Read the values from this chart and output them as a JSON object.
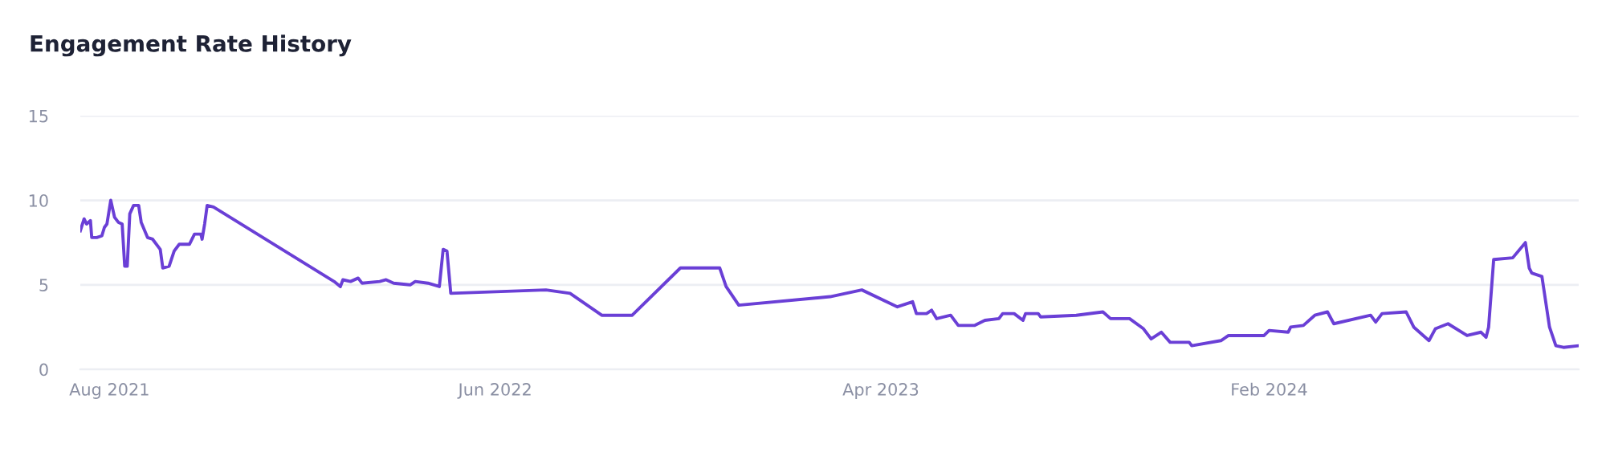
{
  "chart_data": {
    "type": "line",
    "title": "Engagement Rate History",
    "x": [
      "2021-07-09",
      "2021-07-12",
      "2021-07-14",
      "2021-07-17",
      "2021-07-18",
      "2021-07-22",
      "2021-07-26",
      "2021-07-28",
      "2021-07-30",
      "2021-08-02",
      "2021-08-05",
      "2021-08-08",
      "2021-08-11",
      "2021-08-13",
      "2021-08-15",
      "2021-08-17",
      "2021-08-20",
      "2021-08-24",
      "2021-08-26",
      "2021-08-31",
      "2021-09-04",
      "2021-09-10",
      "2021-09-12",
      "2021-09-17",
      "2021-09-21",
      "2021-09-25",
      "2021-10-03",
      "2021-10-07",
      "2021-10-12",
      "2021-10-13",
      "2021-10-15",
      "2021-10-17",
      "2021-10-22",
      "2022-01-25",
      "2022-01-30",
      "2022-02-01",
      "2022-02-07",
      "2022-02-13",
      "2022-02-16",
      "2022-03-02",
      "2022-03-07",
      "2022-03-13",
      "2022-03-26",
      "2022-03-30",
      "2022-04-09",
      "2022-04-18",
      "2022-04-21",
      "2022-04-24",
      "2022-04-27",
      "2022-07-11",
      "2022-07-30",
      "2022-08-24",
      "2022-09-17",
      "2022-10-25",
      "2022-11-25",
      "2022-11-30",
      "2022-12-10",
      "2023-02-20",
      "2023-03-17",
      "2023-04-14",
      "2023-04-26",
      "2023-04-29",
      "2023-05-07",
      "2023-05-11",
      "2023-05-15",
      "2023-05-26",
      "2023-06-01",
      "2023-06-14",
      "2023-06-22",
      "2023-07-03",
      "2023-07-06",
      "2023-07-15",
      "2023-07-22",
      "2023-07-24",
      "2023-08-03",
      "2023-08-05",
      "2023-09-02",
      "2023-09-23",
      "2023-09-29",
      "2023-10-14",
      "2023-10-25",
      "2023-10-31",
      "2023-11-08",
      "2023-11-15",
      "2023-11-30",
      "2023-12-02",
      "2023-12-25",
      "2023-12-31",
      "2024-01-28",
      "2024-02-01",
      "2024-02-16",
      "2024-02-18",
      "2024-02-28",
      "2024-03-08",
      "2024-03-18",
      "2024-03-23",
      "2024-04-21",
      "2024-04-25",
      "2024-04-30",
      "2024-05-19",
      "2024-05-25",
      "2024-06-06",
      "2024-06-11",
      "2024-06-21",
      "2024-07-06",
      "2024-07-17",
      "2024-07-21",
      "2024-07-23",
      "2024-07-27",
      "2024-08-11",
      "2024-08-21",
      "2024-08-24",
      "2024-08-26",
      "2024-09-03",
      "2024-09-09",
      "2024-09-14",
      "2024-09-20",
      "2024-10-02"
    ],
    "values": [
      8.2,
      8.9,
      8.6,
      8.8,
      7.8,
      7.8,
      7.9,
      8.4,
      8.6,
      10.0,
      9.0,
      8.7,
      8.6,
      6.1,
      6.1,
      9.2,
      9.7,
      9.7,
      8.7,
      7.8,
      7.7,
      7.1,
      6.0,
      6.1,
      7.0,
      7.4,
      7.4,
      8.0,
      8.0,
      7.7,
      8.6,
      9.7,
      9.6,
      5.2,
      4.9,
      5.3,
      5.2,
      5.4,
      5.1,
      5.2,
      5.3,
      5.1,
      5.0,
      5.2,
      5.1,
      4.9,
      7.1,
      7.0,
      4.5,
      4.7,
      4.5,
      3.2,
      3.2,
      6.0,
      6.0,
      4.9,
      3.8,
      4.3,
      4.7,
      3.7,
      4.0,
      3.3,
      3.3,
      3.5,
      3.0,
      3.2,
      2.6,
      2.6,
      2.9,
      3.0,
      3.3,
      3.3,
      2.9,
      3.3,
      3.3,
      3.1,
      3.2,
      3.4,
      3.0,
      3.0,
      2.4,
      1.8,
      2.2,
      1.6,
      1.6,
      1.4,
      1.7,
      2.0,
      2.0,
      2.3,
      2.2,
      2.5,
      2.6,
      3.2,
      3.4,
      2.7,
      3.2,
      2.8,
      3.3,
      3.4,
      2.5,
      1.7,
      2.4,
      2.7,
      2.0,
      2.2,
      1.9,
      2.5,
      6.5,
      6.6,
      7.5,
      6.0,
      5.7,
      5.5,
      2.5,
      1.4,
      1.3,
      1.4
    ],
    "color": "#6a3fd6",
    "xlim": [
      "2021-07-09",
      "2024-10-02"
    ],
    "xticks": [
      {
        "value": "2021-08-01",
        "label": "Aug 2021"
      },
      {
        "value": "2022-06-01",
        "label": "Jun 2022"
      },
      {
        "value": "2023-04-01",
        "label": "Apr 2023"
      },
      {
        "value": "2024-02-01",
        "label": "Feb 2024"
      }
    ],
    "ylim": [
      0,
      15
    ],
    "yticks": [
      0,
      5,
      10,
      15
    ],
    "grid": "y",
    "marker": "none",
    "line_style": "solid"
  }
}
